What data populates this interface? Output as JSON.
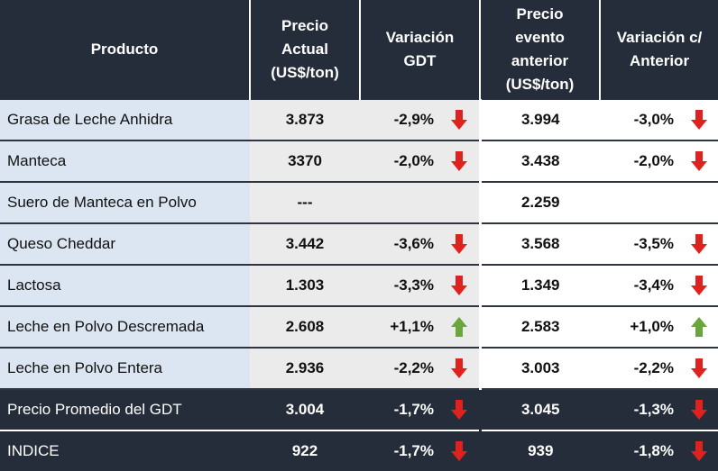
{
  "header": {
    "producto": "Producto",
    "precio_actual": [
      "Precio",
      "Actual",
      "(US$/ton)"
    ],
    "variacion_gdt": [
      "Variación",
      "GDT"
    ],
    "precio_anterior": [
      "Precio",
      "evento",
      "anterior",
      "(US$/ton)"
    ],
    "variacion_anterior": [
      "Variación c/",
      "Anterior"
    ]
  },
  "colors": {
    "header_bg": "#252d3a",
    "product_bg": "#dce6f2",
    "current_bg": "#ebebeb",
    "arrow_down": "#e0221f",
    "arrow_up": "#6aa63c"
  },
  "rows": [
    {
      "producto": "Grasa de Leche Anhidra",
      "precio_actual": "3.873",
      "var_gdt": "-2,9%",
      "dir_gdt": "down",
      "precio_anterior": "3.994",
      "var_anterior": "-3,0%",
      "dir_anterior": "down"
    },
    {
      "producto": "Manteca",
      "precio_actual": "3370",
      "var_gdt": "-2,0%",
      "dir_gdt": "down",
      "precio_anterior": "3.438",
      "var_anterior": "-2,0%",
      "dir_anterior": "down"
    },
    {
      "producto": "Suero de Manteca en Polvo",
      "precio_actual": "---",
      "var_gdt": "",
      "dir_gdt": "none",
      "precio_anterior": "2.259",
      "var_anterior": "",
      "dir_anterior": "none"
    },
    {
      "producto": "Queso Cheddar",
      "precio_actual": "3.442",
      "var_gdt": "-3,6%",
      "dir_gdt": "down",
      "precio_anterior": "3.568",
      "var_anterior": "-3,5%",
      "dir_anterior": "down"
    },
    {
      "producto": "Lactosa",
      "precio_actual": "1.303",
      "var_gdt": "-3,3%",
      "dir_gdt": "down",
      "precio_anterior": "1.349",
      "var_anterior": "-3,4%",
      "dir_anterior": "down"
    },
    {
      "producto": "Leche en Polvo Descremada",
      "precio_actual": "2.608",
      "var_gdt": "+1,1%",
      "dir_gdt": "up",
      "precio_anterior": "2.583",
      "var_anterior": "+1,0%",
      "dir_anterior": "up"
    },
    {
      "producto": "Leche en Polvo Entera",
      "precio_actual": "2.936",
      "var_gdt": "-2,2%",
      "dir_gdt": "down",
      "precio_anterior": "3.003",
      "var_anterior": "-2,2%",
      "dir_anterior": "down"
    },
    {
      "producto": "Precio Promedio del GDT",
      "precio_actual": "3.004",
      "var_gdt": "-1,7%",
      "dir_gdt": "down",
      "precio_anterior": "3.045",
      "var_anterior": "-1,3%",
      "dir_anterior": "down",
      "dark": true
    },
    {
      "producto": "INDICE",
      "precio_actual": "922",
      "var_gdt": "-1,7%",
      "dir_gdt": "down",
      "precio_anterior": "939",
      "var_anterior": "-1,8%",
      "dir_anterior": "down",
      "dark": true
    }
  ]
}
